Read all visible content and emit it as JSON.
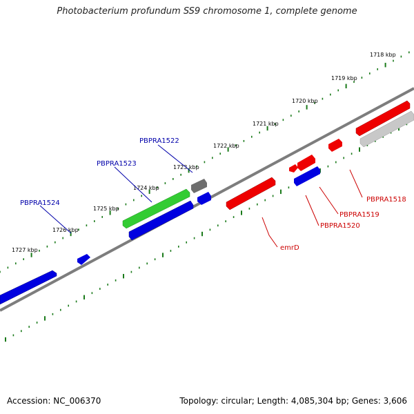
{
  "title": "Photobacterium profundum SS9 chromosome 1, complete genome",
  "footer": {
    "accession_text": "Accession: NC_006370",
    "stats_text": "Topology: circular; Length: 4,085,304 bp; Genes: 3,606"
  },
  "kbp_labels": [
    "1718 kbp",
    "1719 kbp",
    "1720 kbp",
    "1721 kbp",
    "1722 kbp",
    "1723 kbp",
    "1724 kbp",
    "1725 kbp",
    "1726 kbp",
    "1727 kbp"
  ],
  "gene_labels": {
    "top": [
      "PBPRA1522",
      "PBPRA1523",
      "PBPRA1524"
    ],
    "bottom": [
      "PBPRA1518",
      "PBPRA1519",
      "PBPRA1520",
      "emrD"
    ]
  },
  "colors": {
    "backbone": "#808080",
    "tick": "#1a7a1a",
    "forward_label": "#0000aa",
    "reverse_label": "#cc0000",
    "cds_blue": "#0000e0",
    "cds_red": "#ee0000",
    "cds_green": "#33cc33",
    "cds_gray_dark": "#6e6e6e",
    "cds_gray_light": "#c8c8c8"
  }
}
